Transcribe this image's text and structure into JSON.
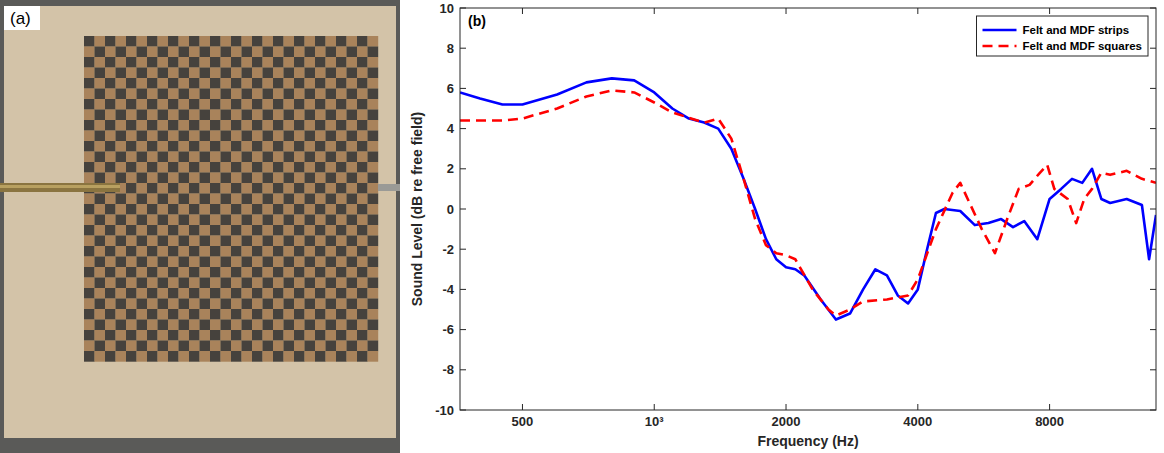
{
  "photo": {
    "label": "(a)"
  },
  "chart_data": {
    "type": "line",
    "annotations": [
      "(b)"
    ],
    "x_label": "Frequency (Hz)",
    "y_label": "Sound Level (dB re free field)",
    "log": "x",
    "grid": false,
    "legend": "upper right",
    "xlim": [
      360,
      14000
    ],
    "ylim": [
      -10,
      10
    ],
    "xticks": [
      500,
      {
        "value": 1000,
        "label": "10³"
      },
      2000,
      4000,
      8000
    ],
    "yticks": [
      -10,
      -8,
      -6,
      -4,
      -2,
      0,
      2,
      4,
      6,
      8,
      10
    ],
    "series": [
      {
        "name": "Felt and MDF strips",
        "color": "#0000ff",
        "line_style": "solid",
        "x": [
          360,
          400,
          450,
          500,
          600,
          700,
          800,
          900,
          1000,
          1100,
          1200,
          1300,
          1400,
          1500,
          1600,
          1700,
          1800,
          1900,
          2000,
          2100,
          2200,
          2400,
          2600,
          2800,
          3000,
          3200,
          3400,
          3600,
          3800,
          4000,
          4200,
          4400,
          4600,
          5000,
          5400,
          5800,
          6200,
          6600,
          7000,
          7500,
          8000,
          8500,
          9000,
          9500,
          10000,
          10500,
          11000,
          12000,
          13000,
          13500,
          14000
        ],
        "values": [
          5.8,
          5.5,
          5.2,
          5.2,
          5.7,
          6.3,
          6.5,
          6.4,
          5.8,
          5.0,
          4.5,
          4.3,
          4.0,
          3.0,
          1.5,
          0.0,
          -1.5,
          -2.5,
          -2.9,
          -3.0,
          -3.3,
          -4.5,
          -5.5,
          -5.2,
          -4.0,
          -3.0,
          -3.3,
          -4.3,
          -4.7,
          -4.0,
          -2.0,
          -0.2,
          0.0,
          -0.1,
          -0.8,
          -0.7,
          -0.5,
          -0.9,
          -0.6,
          -1.5,
          0.5,
          1.0,
          1.5,
          1.3,
          2.0,
          0.5,
          0.3,
          0.5,
          0.2,
          -2.5,
          -0.3
        ]
      },
      {
        "name": "Felt and MDF squares",
        "color": "#ff0000",
        "line_style": "dashed",
        "x": [
          360,
          450,
          500,
          600,
          700,
          800,
          900,
          1000,
          1100,
          1300,
          1400,
          1500,
          1600,
          1700,
          1800,
          1900,
          2000,
          2100,
          2300,
          2500,
          2600,
          2800,
          3000,
          3400,
          3800,
          4000,
          4400,
          4800,
          5000,
          5200,
          5600,
          6000,
          6400,
          6800,
          7200,
          7600,
          7900,
          8200,
          8800,
          9200,
          9600,
          10000,
          10500,
          11000,
          12000,
          13000,
          14000
        ],
        "values": [
          4.4,
          4.4,
          4.5,
          5.0,
          5.6,
          5.9,
          5.8,
          5.3,
          4.8,
          4.3,
          4.5,
          3.5,
          1.5,
          -0.5,
          -1.8,
          -2.2,
          -2.3,
          -2.5,
          -4.0,
          -5.0,
          -5.3,
          -5.0,
          -4.6,
          -4.5,
          -4.3,
          -3.5,
          -1.0,
          0.8,
          1.3,
          0.5,
          -1.0,
          -2.2,
          -0.5,
          1.0,
          1.2,
          1.8,
          2.2,
          1.0,
          0.5,
          -0.7,
          0.5,
          1.0,
          1.8,
          1.7,
          1.9,
          1.5,
          1.3
        ]
      }
    ]
  }
}
